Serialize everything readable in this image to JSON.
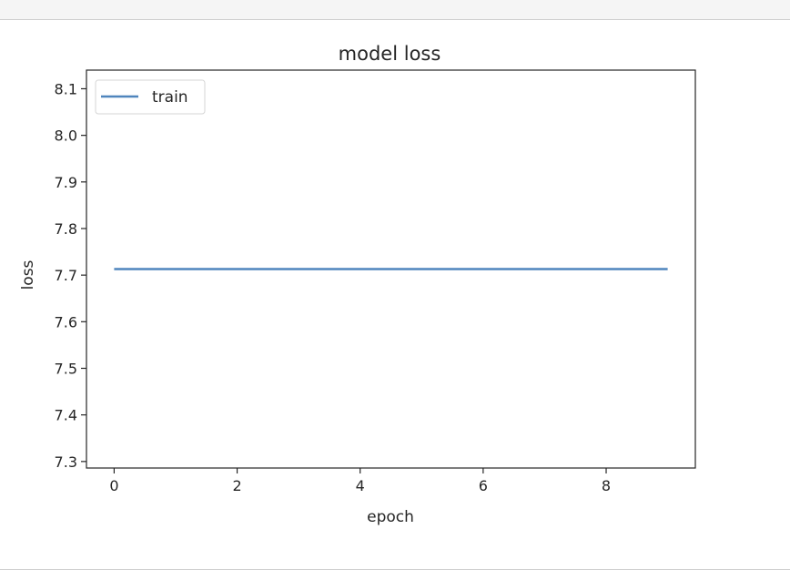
{
  "colors": {
    "series_line": "#4f85bd",
    "axis": "#262626",
    "legend_border": "#d6d6d6"
  },
  "chart_data": {
    "type": "line",
    "title": "model loss",
    "xlabel": "epoch",
    "ylabel": "loss",
    "xlim": [
      -0.45,
      9.45
    ],
    "ylim": [
      7.286,
      8.14
    ],
    "xticks": [
      0,
      2,
      4,
      6,
      8
    ],
    "yticks": [
      7.3,
      7.4,
      7.5,
      7.6,
      7.7,
      7.8,
      7.9,
      8.0,
      8.1
    ],
    "ytick_labels": [
      "7.3",
      "7.4",
      "7.5",
      "7.6",
      "7.7",
      "7.8",
      "7.9",
      "8.0",
      "8.1"
    ],
    "grid": false,
    "legend_position": "upper left",
    "series": [
      {
        "name": "train",
        "x": [
          0,
          1,
          2,
          3,
          4,
          5,
          6,
          7,
          8,
          9
        ],
        "y": [
          7.713,
          7.713,
          7.713,
          7.713,
          7.713,
          7.713,
          7.713,
          7.713,
          7.713,
          7.713
        ]
      }
    ]
  }
}
